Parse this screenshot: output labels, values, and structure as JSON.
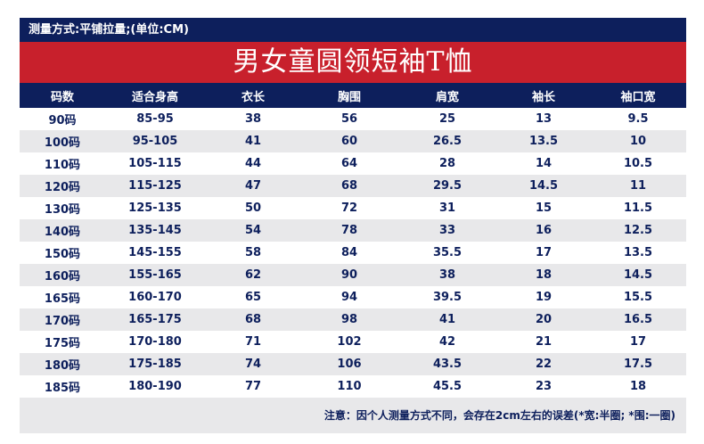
{
  "header": {
    "measure_note": "测量方式:平铺拉量;(单位:CM)",
    "title": "男女童圆领短袖T恤"
  },
  "table": {
    "columns": [
      "码数",
      "适合身高",
      "衣长",
      "胸围",
      "肩宽",
      "袖长",
      "袖口宽"
    ],
    "rows": [
      [
        "90码",
        "85-95",
        "38",
        "56",
        "25",
        "13",
        "9.5"
      ],
      [
        "100码",
        "95-105",
        "41",
        "60",
        "26.5",
        "13.5",
        "10"
      ],
      [
        "110码",
        "105-115",
        "44",
        "64",
        "28",
        "14",
        "10.5"
      ],
      [
        "120码",
        "115-125",
        "47",
        "68",
        "29.5",
        "14.5",
        "11"
      ],
      [
        "130码",
        "125-135",
        "50",
        "72",
        "31",
        "15",
        "11.5"
      ],
      [
        "140码",
        "135-145",
        "54",
        "78",
        "33",
        "16",
        "12.5"
      ],
      [
        "150码",
        "145-155",
        "58",
        "84",
        "35.5",
        "17",
        "13.5"
      ],
      [
        "160码",
        "155-165",
        "62",
        "90",
        "38",
        "18",
        "14.5"
      ],
      [
        "165码",
        "160-170",
        "65",
        "94",
        "39.5",
        "19",
        "15.5"
      ],
      [
        "170码",
        "165-175",
        "68",
        "98",
        "41",
        "20",
        "16.5"
      ],
      [
        "175码",
        "170-180",
        "71",
        "102",
        "42",
        "21",
        "17"
      ],
      [
        "180码",
        "175-185",
        "74",
        "106",
        "43.5",
        "22",
        "17.5"
      ],
      [
        "185码",
        "180-190",
        "77",
        "110",
        "45.5",
        "23",
        "18"
      ]
    ]
  },
  "footer": {
    "note": "注意：因个人测量方式不同，会存在2cm左右的误差(*宽:半圈; *围:一圈)"
  },
  "colors": {
    "navy": "#0d1f5c",
    "red": "#c8202c",
    "stripe": "#e8e8ea"
  }
}
